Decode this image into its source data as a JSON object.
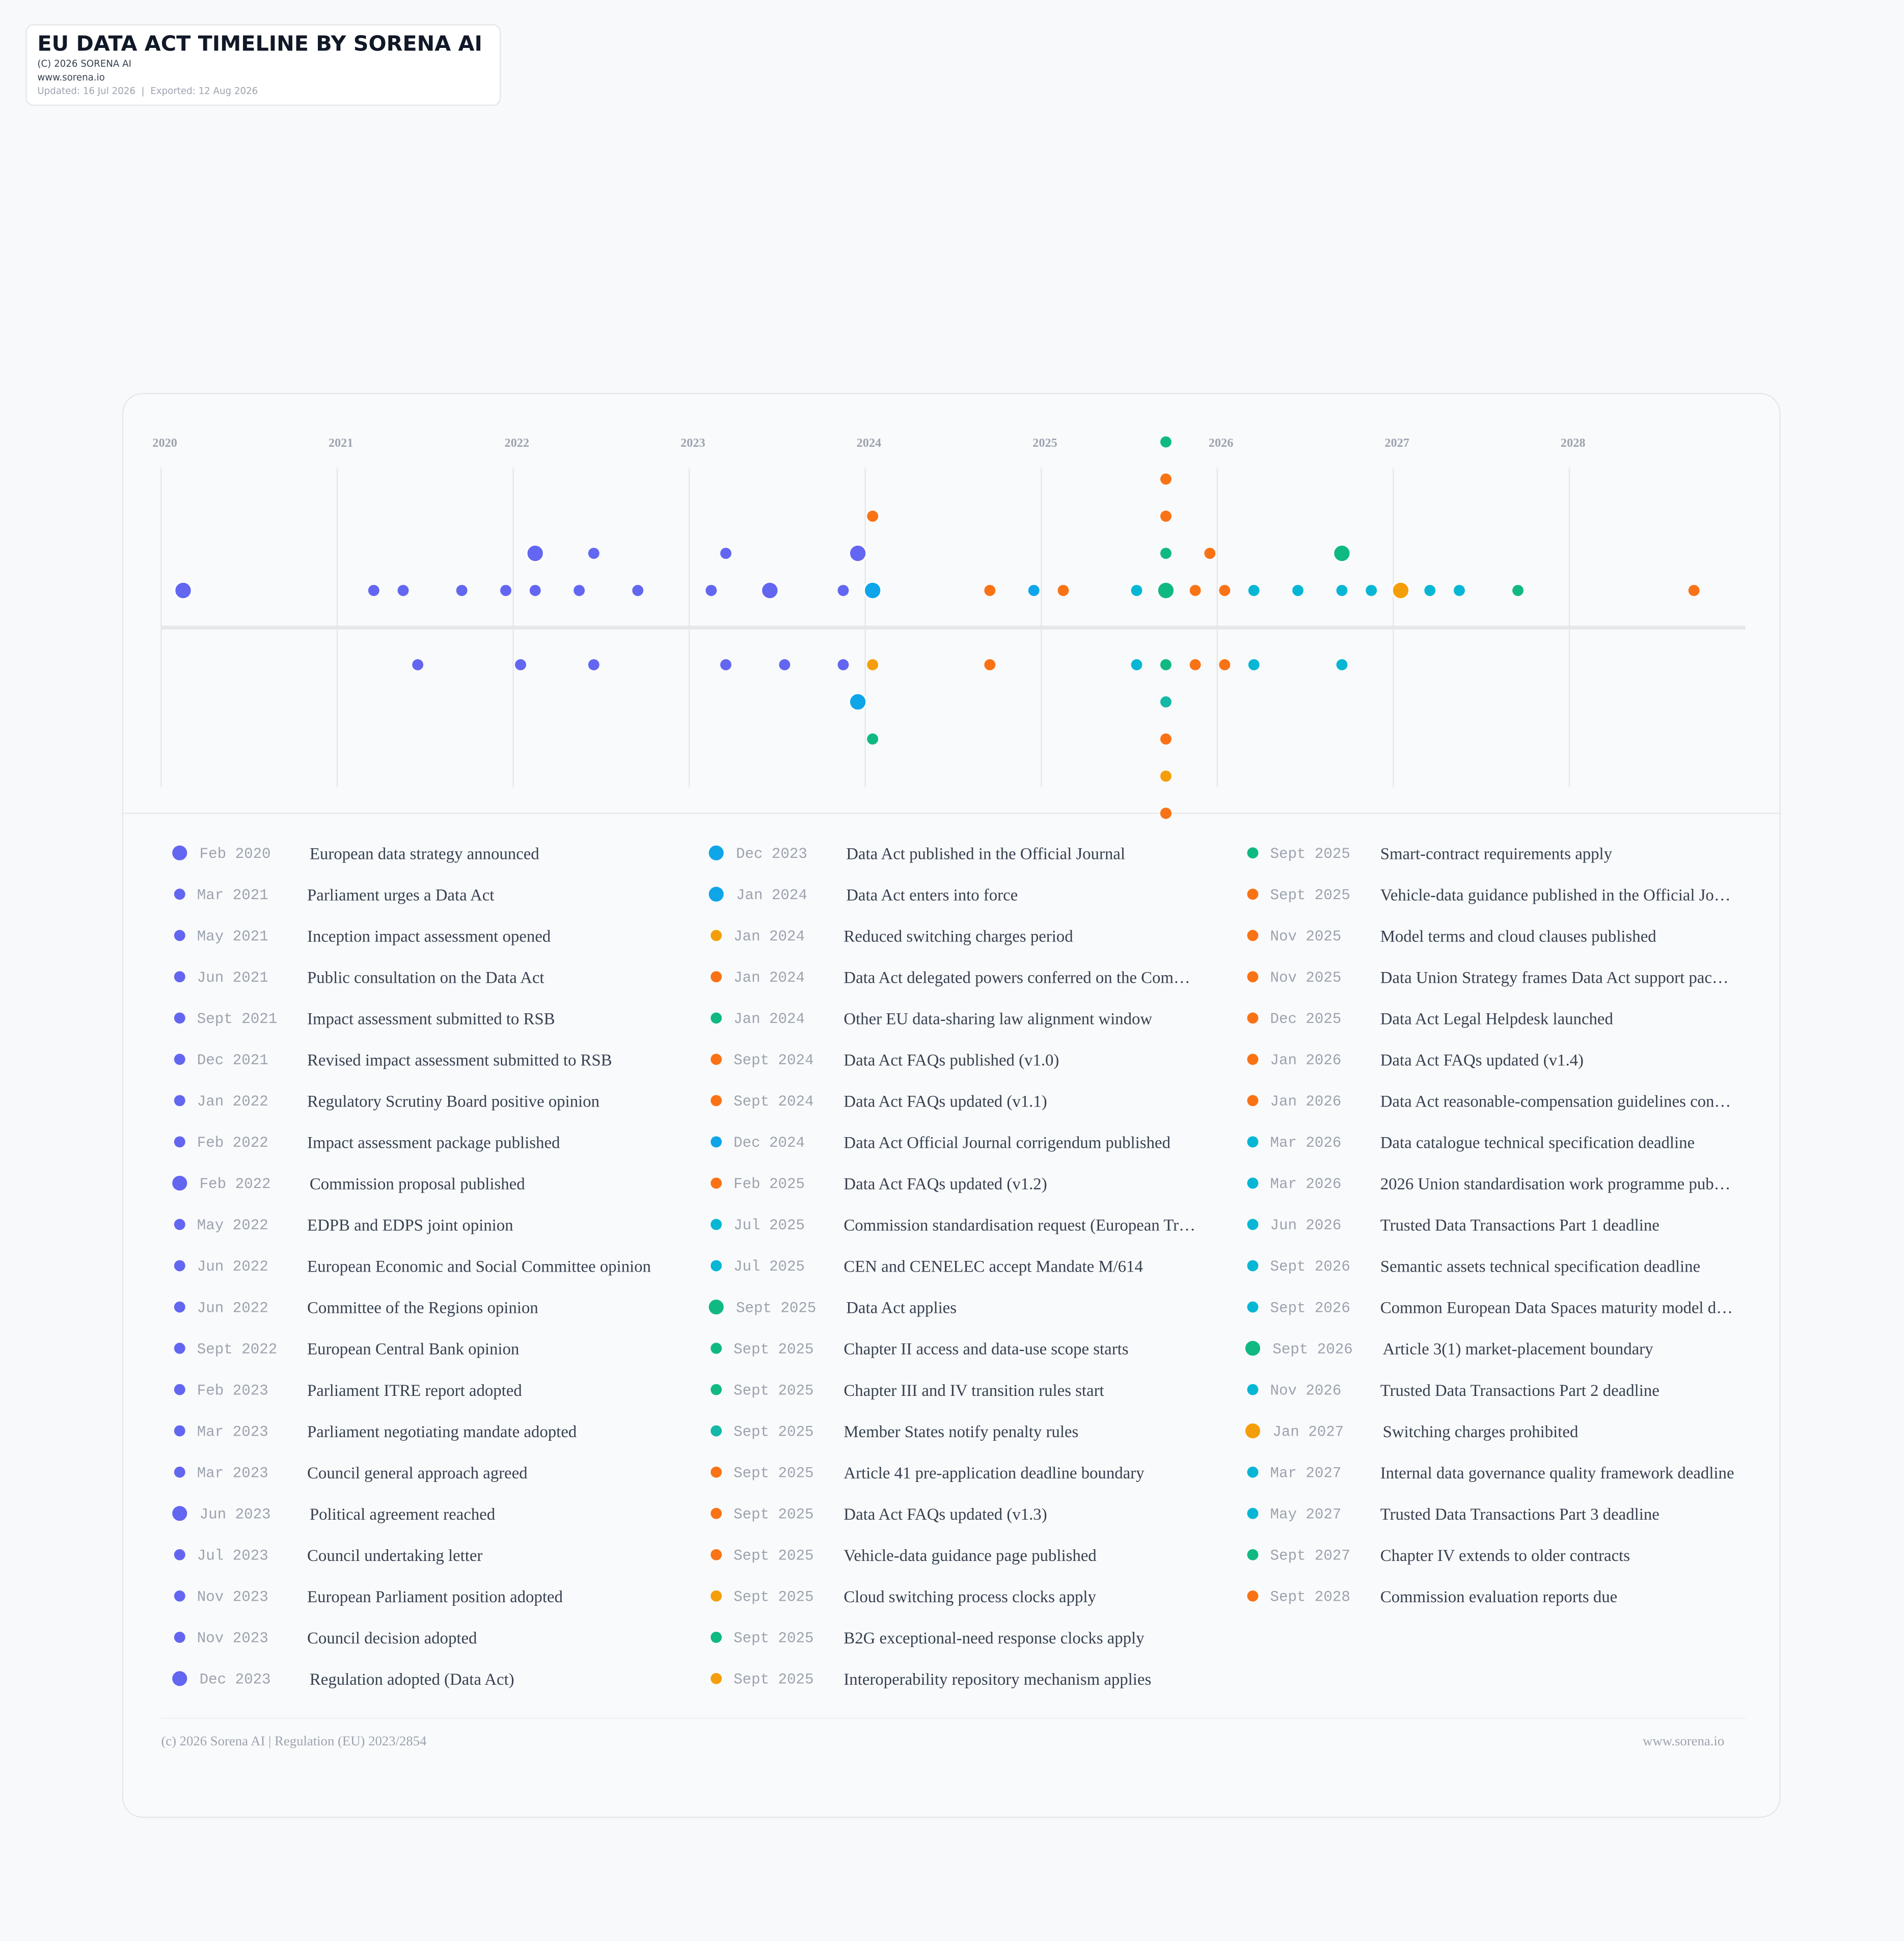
{
  "header": {
    "title": "EU DATA ACT TIMELINE BY SORENA AI",
    "copyright": "(C) 2026 SORENA AI",
    "website": "www.sorena.io",
    "dates": "Updated: 16 Jul 2026  |  Exported: 12 Aug 2026"
  },
  "chart_data": {
    "type": "timeline",
    "xlim": [
      2020,
      2029
    ],
    "xticks": [
      2020,
      2021,
      2022,
      2023,
      2024,
      2025,
      2026,
      2027,
      2028
    ],
    "grid": true,
    "events": [
      {
        "date": "Feb 2020",
        "label": "European data strategy announced",
        "x": 2020.125,
        "color": "#6366f1",
        "milestone": true
      },
      {
        "date": "Mar 2021",
        "label": "Parliament urges a Data Act",
        "x": 2021.208,
        "color": "#6366f1"
      },
      {
        "date": "May 2021",
        "label": "Inception impact assessment opened",
        "x": 2021.375,
        "color": "#6366f1"
      },
      {
        "date": "Jun 2021",
        "label": "Public consultation on the Data Act",
        "x": 2021.458,
        "color": "#6366f1"
      },
      {
        "date": "Sept 2021",
        "label": "Impact assessment submitted to RSB",
        "x": 2021.708,
        "color": "#6366f1"
      },
      {
        "date": "Dec 2021",
        "label": "Revised impact assessment submitted to RSB",
        "x": 2021.958,
        "color": "#6366f1"
      },
      {
        "date": "Jan 2022",
        "label": "Regulatory Scrutiny Board positive opinion",
        "x": 2022.042,
        "color": "#6366f1"
      },
      {
        "date": "Feb 2022",
        "label": "Impact assessment package published",
        "x": 2022.125,
        "color": "#6366f1"
      },
      {
        "date": "Feb 2022",
        "label": "Commission proposal published",
        "x": 2022.125,
        "color": "#6366f1",
        "milestone": true
      },
      {
        "date": "May 2022",
        "label": "EDPB and EDPS joint opinion",
        "x": 2022.375,
        "color": "#6366f1"
      },
      {
        "date": "Jun 2022",
        "label": "European Economic and Social Committee opinion",
        "x": 2022.458,
        "color": "#6366f1"
      },
      {
        "date": "Jun 2022",
        "label": "Committee of the Regions opinion",
        "x": 2022.458,
        "color": "#6366f1"
      },
      {
        "date": "Sept 2022",
        "label": "European Central Bank opinion",
        "x": 2022.708,
        "color": "#6366f1"
      },
      {
        "date": "Feb 2023",
        "label": "Parliament ITRE report adopted",
        "x": 2023.125,
        "color": "#6366f1"
      },
      {
        "date": "Mar 2023",
        "label": "Parliament negotiating mandate adopted",
        "x": 2023.208,
        "color": "#6366f1"
      },
      {
        "date": "Mar 2023",
        "label": "Council general approach agreed",
        "x": 2023.208,
        "color": "#6366f1"
      },
      {
        "date": "Jun 2023",
        "label": "Political agreement reached",
        "x": 2023.458,
        "color": "#6366f1",
        "milestone": true
      },
      {
        "date": "Jul 2023",
        "label": "Council undertaking letter",
        "x": 2023.542,
        "color": "#6366f1"
      },
      {
        "date": "Nov 2023",
        "label": "European Parliament position adopted",
        "x": 2023.875,
        "color": "#6366f1"
      },
      {
        "date": "Nov 2023",
        "label": "Council decision adopted",
        "x": 2023.875,
        "color": "#6366f1"
      },
      {
        "date": "Dec 2023",
        "label": "Regulation adopted (Data Act)",
        "x": 2023.958,
        "color": "#6366f1",
        "milestone": true
      },
      {
        "date": "Dec 2023",
        "label": "Data Act published in the Official Journal",
        "x": 2023.958,
        "color": "#0ea5e9",
        "milestone": true
      },
      {
        "date": "Jan 2024",
        "label": "Data Act enters into force",
        "x": 2024.042,
        "color": "#0ea5e9",
        "milestone": true
      },
      {
        "date": "Jan 2024",
        "label": "Reduced switching charges period",
        "x": 2024.042,
        "color": "#f59e0b"
      },
      {
        "date": "Jan 2024",
        "label": "Data Act delegated powers conferred on the Com…",
        "x": 2024.042,
        "color": "#f97316"
      },
      {
        "date": "Jan 2024",
        "label": "Other EU data-sharing law alignment window",
        "x": 2024.042,
        "color": "#10b981"
      },
      {
        "date": "Sept 2024",
        "label": "Data Act FAQs published (v1.0)",
        "x": 2024.708,
        "color": "#f97316"
      },
      {
        "date": "Sept 2024",
        "label": "Data Act FAQs updated (v1.1)",
        "x": 2024.708,
        "color": "#f97316"
      },
      {
        "date": "Dec 2024",
        "label": "Data Act Official Journal corrigendum published",
        "x": 2024.958,
        "color": "#0ea5e9"
      },
      {
        "date": "Feb 2025",
        "label": "Data Act FAQs updated (v1.2)",
        "x": 2025.125,
        "color": "#f97316"
      },
      {
        "date": "Jul 2025",
        "label": "Commission standardisation request (European Tr…",
        "x": 2025.542,
        "color": "#06b6d4"
      },
      {
        "date": "Jul 2025",
        "label": "CEN and CENELEC accept Mandate M/614",
        "x": 2025.542,
        "color": "#06b6d4"
      },
      {
        "date": "Sept 2025",
        "label": "Data Act applies",
        "x": 2025.708,
        "color": "#10b981",
        "milestone": true
      },
      {
        "date": "Sept 2025",
        "label": "Chapter II access and data-use scope starts",
        "x": 2025.708,
        "color": "#10b981"
      },
      {
        "date": "Sept 2025",
        "label": "Chapter III and IV transition rules start",
        "x": 2025.708,
        "color": "#10b981"
      },
      {
        "date": "Sept 2025",
        "label": "Member States notify penalty rules",
        "x": 2025.708,
        "color": "#14b8a6"
      },
      {
        "date": "Sept 2025",
        "label": "Article 41 pre-application deadline boundary",
        "x": 2025.708,
        "color": "#f97316"
      },
      {
        "date": "Sept 2025",
        "label": "Data Act FAQs updated (v1.3)",
        "x": 2025.708,
        "color": "#f97316"
      },
      {
        "date": "Sept 2025",
        "label": "Vehicle-data guidance page published",
        "x": 2025.708,
        "color": "#f97316"
      },
      {
        "date": "Sept 2025",
        "label": "Cloud switching process clocks apply",
        "x": 2025.708,
        "color": "#f59e0b"
      },
      {
        "date": "Sept 2025",
        "label": "B2G exceptional-need response clocks apply",
        "x": 2025.708,
        "color": "#10b981"
      },
      {
        "date": "Sept 2025",
        "label": "Interoperability repository mechanism applies",
        "x": 2025.708,
        "color": "#f59e0b"
      },
      {
        "date": "Sept 2025",
        "label": "Smart-contract requirements apply",
        "x": 2025.708,
        "color": "#10b981"
      },
      {
        "date": "Sept 2025",
        "label": "Vehicle-data guidance published in the Official Jo…",
        "x": 2025.708,
        "color": "#f97316"
      },
      {
        "date": "Nov 2025",
        "label": "Model terms and cloud clauses published",
        "x": 2025.875,
        "color": "#f97316"
      },
      {
        "date": "Nov 2025",
        "label": "Data Union Strategy frames Data Act support pac…",
        "x": 2025.875,
        "color": "#f97316"
      },
      {
        "date": "Dec 2025",
        "label": "Data Act Legal Helpdesk launched",
        "x": 2025.958,
        "color": "#f97316"
      },
      {
        "date": "Jan 2026",
        "label": "Data Act FAQs updated (v1.4)",
        "x": 2026.042,
        "color": "#f97316"
      },
      {
        "date": "Jan 2026",
        "label": "Data Act reasonable-compensation guidelines con…",
        "x": 2026.042,
        "color": "#f97316"
      },
      {
        "date": "Mar 2026",
        "label": "Data catalogue technical specification deadline",
        "x": 2026.208,
        "color": "#06b6d4"
      },
      {
        "date": "Mar 2026",
        "label": "2026 Union standardisation work programme pub…",
        "x": 2026.208,
        "color": "#06b6d4"
      },
      {
        "date": "Jun 2026",
        "label": "Trusted Data Transactions Part 1 deadline",
        "x": 2026.458,
        "color": "#06b6d4"
      },
      {
        "date": "Sept 2026",
        "label": "Semantic assets technical specification deadline",
        "x": 2026.708,
        "color": "#06b6d4"
      },
      {
        "date": "Sept 2026",
        "label": "Common European Data Spaces maturity model d…",
        "x": 2026.708,
        "color": "#06b6d4"
      },
      {
        "date": "Sept 2026",
        "label": "Article 3(1) market-placement boundary",
        "x": 2026.708,
        "color": "#10b981",
        "milestone": true
      },
      {
        "date": "Nov 2026",
        "label": "Trusted Data Transactions Part 2 deadline",
        "x": 2026.875,
        "color": "#06b6d4"
      },
      {
        "date": "Jan 2027",
        "label": "Switching charges prohibited",
        "x": 2027.042,
        "color": "#f59e0b",
        "milestone": true
      },
      {
        "date": "Mar 2027",
        "label": "Internal data governance quality framework deadline",
        "x": 2027.208,
        "color": "#06b6d4"
      },
      {
        "date": "May 2027",
        "label": "Trusted Data Transactions Part 3 deadline",
        "x": 2027.375,
        "color": "#06b6d4"
      },
      {
        "date": "Sept 2027",
        "label": "Chapter IV extends to older contracts",
        "x": 2027.708,
        "color": "#10b981"
      },
      {
        "date": "Sept 2028",
        "label": "Commission evaluation reports due",
        "x": 2028.708,
        "color": "#f97316"
      }
    ]
  },
  "footer": {
    "left": "(c) 2026 Sorena AI | Regulation (EU) 2023/2854",
    "right": "www.sorena.io"
  }
}
